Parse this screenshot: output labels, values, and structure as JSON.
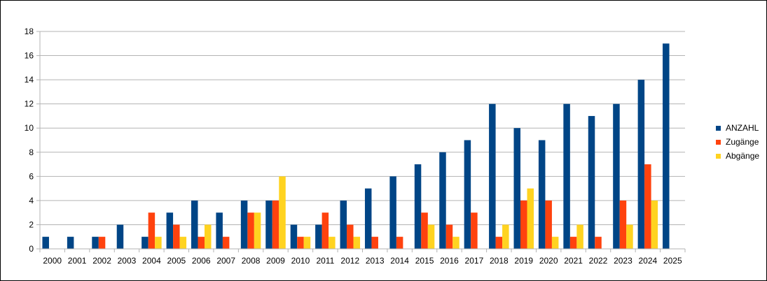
{
  "chart_data": {
    "type": "bar",
    "title": "",
    "xlabel": "",
    "ylabel": "",
    "ylim": [
      0,
      18
    ],
    "ytick_step": 2,
    "grid": true,
    "legend_position": "right",
    "categories": [
      "2000",
      "2001",
      "2002",
      "2003",
      "2004",
      "2005",
      "2006",
      "2007",
      "2008",
      "2009",
      "2010",
      "2011",
      "2012",
      "2013",
      "2014",
      "2015",
      "2016",
      "2017",
      "2018",
      "2019",
      "2020",
      "2021",
      "2022",
      "2023",
      "2024",
      "2025"
    ],
    "series": [
      {
        "name": "ANZAHL",
        "color": "#004586",
        "values": [
          1,
          1,
          1,
          2,
          1,
          3,
          4,
          3,
          4,
          4,
          2,
          2,
          4,
          5,
          6,
          7,
          8,
          9,
          12,
          10,
          9,
          12,
          11,
          12,
          14,
          17
        ]
      },
      {
        "name": "Zugänge",
        "color": "#ff420e",
        "values": [
          0,
          0,
          1,
          0,
          3,
          2,
          1,
          1,
          3,
          4,
          1,
          3,
          2,
          1,
          1,
          3,
          2,
          3,
          1,
          4,
          4,
          1,
          1,
          4,
          7,
          0
        ]
      },
      {
        "name": "Abgänge",
        "color": "#ffd320",
        "values": [
          0,
          0,
          0,
          0,
          1,
          1,
          2,
          0,
          3,
          6,
          1,
          1,
          1,
          0,
          0,
          2,
          1,
          0,
          2,
          5,
          1,
          2,
          0,
          2,
          4,
          0
        ]
      }
    ]
  }
}
